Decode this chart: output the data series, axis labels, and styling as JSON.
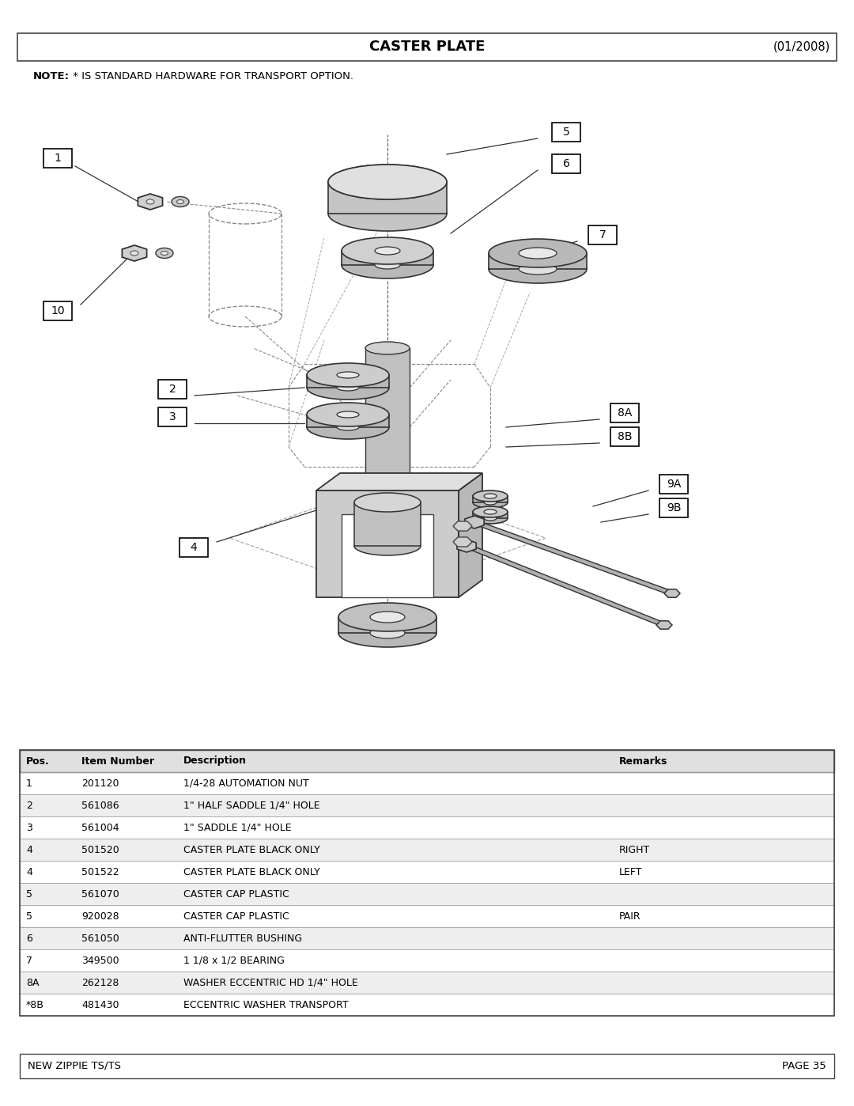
{
  "title": "CASTER PLATE",
  "date": "(01/2008)",
  "note_bold": "NOTE:",
  "note_rest": " * IS STANDARD HARDWARE FOR TRANSPORT OPTION.",
  "footer_left": "NEW ZIPPIE TS/TS",
  "footer_right": "PAGE 35",
  "table_headers": [
    "Pos.",
    "Item Number",
    "Description",
    "Remarks"
  ],
  "table_rows": [
    [
      "1",
      "201120",
      "1/4-28 AUTOMATION NUT",
      ""
    ],
    [
      "2",
      "561086",
      "1\" HALF SADDLE 1/4\" HOLE",
      ""
    ],
    [
      "3",
      "561004",
      "1\" SADDLE 1/4\" HOLE",
      ""
    ],
    [
      "4",
      "501520",
      "CASTER PLATE BLACK ONLY",
      "RIGHT"
    ],
    [
      "4",
      "501522",
      "CASTER PLATE BLACK ONLY",
      "LEFT"
    ],
    [
      "5",
      "561070",
      "CASTER CAP PLASTIC",
      ""
    ],
    [
      "5",
      "920028",
      "CASTER CAP PLASTIC",
      "PAIR"
    ],
    [
      "6",
      "561050",
      "ANTI-FLUTTER BUSHING",
      ""
    ],
    [
      "7",
      "349500",
      "1 1/8 x 1/2 BEARING",
      ""
    ],
    [
      "8A",
      "262128",
      "WASHER ECCENTRIC HD 1/4\" HOLE",
      ""
    ],
    [
      "*8B",
      "481430",
      "ECCENTRIC WASHER TRANSPORT",
      ""
    ]
  ],
  "bg_color": "#ffffff"
}
